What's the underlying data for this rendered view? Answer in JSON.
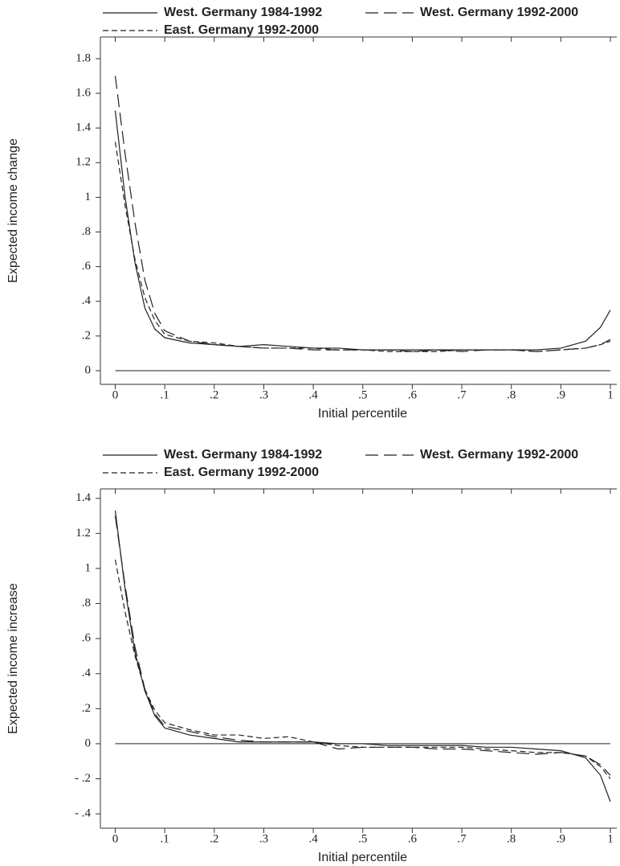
{
  "chart_data": [
    {
      "type": "line",
      "y_label": "Expected income change",
      "x_label": "Initial percentile",
      "x": [
        0,
        0.02,
        0.04,
        0.06,
        0.08,
        0.1,
        0.15,
        0.2,
        0.25,
        0.3,
        0.35,
        0.4,
        0.45,
        0.5,
        0.55,
        0.6,
        0.65,
        0.7,
        0.75,
        0.8,
        0.85,
        0.9,
        0.95,
        0.98,
        1
      ],
      "series": [
        {
          "name": "West. Germany 1984-1992",
          "color": "#222222",
          "dash": "solid",
          "values": [
            1.5,
            1.0,
            0.62,
            0.36,
            0.24,
            0.19,
            0.16,
            0.15,
            0.14,
            0.15,
            0.14,
            0.13,
            0.13,
            0.12,
            0.12,
            0.12,
            0.12,
            0.12,
            0.12,
            0.12,
            0.12,
            0.13,
            0.17,
            0.25,
            0.35
          ]
        },
        {
          "name": "West. Germany 1992-2000",
          "color": "#222222",
          "dash": "long",
          "values": [
            1.7,
            1.25,
            0.85,
            0.52,
            0.33,
            0.23,
            0.17,
            0.15,
            0.14,
            0.13,
            0.13,
            0.12,
            0.12,
            0.12,
            0.12,
            0.11,
            0.12,
            0.11,
            0.12,
            0.12,
            0.11,
            0.12,
            0.13,
            0.15,
            0.18
          ]
        },
        {
          "name": "East. Germany 1992-2000",
          "color": "#222222",
          "dash": "short",
          "values": [
            1.32,
            0.95,
            0.64,
            0.42,
            0.29,
            0.21,
            0.17,
            0.16,
            0.14,
            0.13,
            0.13,
            0.13,
            0.12,
            0.12,
            0.11,
            0.11,
            0.11,
            0.12,
            0.12,
            0.12,
            0.11,
            0.12,
            0.13,
            0.15,
            0.17
          ]
        }
      ],
      "hline": 0,
      "xlim": [
        -0.03,
        1.013
      ],
      "ylim": [
        -0.079,
        1.925
      ],
      "xticks": [
        0,
        {
          "value": 0.1,
          "label": ".1"
        },
        {
          "value": 0.2,
          "label": ".2"
        },
        {
          "value": 0.3,
          "label": ".3"
        },
        {
          "value": 0.4,
          "label": ".4"
        },
        {
          "value": 0.5,
          "label": ".5"
        },
        {
          "value": 0.6,
          "label": ".6"
        },
        {
          "value": 0.7,
          "label": ".7"
        },
        {
          "value": 0.8,
          "label": ".8"
        },
        {
          "value": 0.9,
          "label": ".9"
        },
        1
      ],
      "yticks": [
        0,
        {
          "value": 0.2,
          "label": ".2"
        },
        {
          "value": 0.4,
          "label": ".4"
        },
        {
          "value": 0.6,
          "label": ".6"
        },
        {
          "value": 0.8,
          "label": ".8"
        },
        1,
        1.2,
        1.4,
        1.6,
        1.8
      ]
    },
    {
      "type": "line",
      "y_label": "Expected income increase",
      "x_label": "Initial percentile",
      "x": [
        0,
        0.02,
        0.04,
        0.06,
        0.08,
        0.1,
        0.15,
        0.2,
        0.25,
        0.3,
        0.35,
        0.4,
        0.45,
        0.5,
        0.55,
        0.6,
        0.65,
        0.7,
        0.75,
        0.8,
        0.85,
        0.9,
        0.95,
        0.98,
        1
      ],
      "series": [
        {
          "name": "West. Germany 1984-1992",
          "color": "#222222",
          "dash": "solid",
          "values": [
            1.33,
            0.88,
            0.52,
            0.3,
            0.16,
            0.09,
            0.05,
            0.03,
            0.01,
            0.01,
            0.01,
            0.01,
            0,
            0,
            -0.01,
            -0.01,
            -0.01,
            -0.01,
            -0.02,
            -0.02,
            -0.03,
            -0.04,
            -0.08,
            -0.18,
            -0.33
          ]
        },
        {
          "name": "West. Germany 1992-2000",
          "color": "#222222",
          "dash": "long",
          "values": [
            1.3,
            0.9,
            0.55,
            0.31,
            0.17,
            0.1,
            0.07,
            0.04,
            0.02,
            0.01,
            0.01,
            0.01,
            -0.03,
            -0.02,
            -0.02,
            -0.02,
            -0.03,
            -0.03,
            -0.04,
            -0.05,
            -0.06,
            -0.05,
            -0.07,
            -0.12,
            -0.18
          ]
        },
        {
          "name": "East. Germany 1992-2000",
          "color": "#222222",
          "dash": "short",
          "values": [
            1.05,
            0.75,
            0.5,
            0.31,
            0.19,
            0.12,
            0.08,
            0.05,
            0.05,
            0.03,
            0.04,
            0.01,
            -0.01,
            -0.02,
            -0.02,
            -0.02,
            -0.02,
            -0.02,
            -0.03,
            -0.04,
            -0.05,
            -0.05,
            -0.07,
            -0.13,
            -0.2
          ]
        }
      ],
      "hline": 0,
      "xlim": [
        -0.03,
        1.013
      ],
      "ylim": [
        -0.482,
        1.454
      ],
      "xticks": [
        0,
        {
          "value": 0.1,
          "label": ".1"
        },
        {
          "value": 0.2,
          "label": ".2"
        },
        {
          "value": 0.3,
          "label": ".3"
        },
        {
          "value": 0.4,
          "label": ".4"
        },
        {
          "value": 0.5,
          "label": ".5"
        },
        {
          "value": 0.6,
          "label": ".6"
        },
        {
          "value": 0.7,
          "label": ".7"
        },
        {
          "value": 0.8,
          "label": ".8"
        },
        {
          "value": 0.9,
          "label": ".9"
        },
        1
      ],
      "yticks": [
        {
          "value": -0.4,
          "label": "- .4"
        },
        {
          "value": -0.2,
          "label": "- .2"
        },
        0,
        {
          "value": 0.2,
          "label": ".2"
        },
        {
          "value": 0.4,
          "label": ".4"
        },
        {
          "value": 0.6,
          "label": ".6"
        },
        {
          "value": 0.8,
          "label": ".8"
        },
        1,
        1.2,
        1.4
      ]
    }
  ]
}
